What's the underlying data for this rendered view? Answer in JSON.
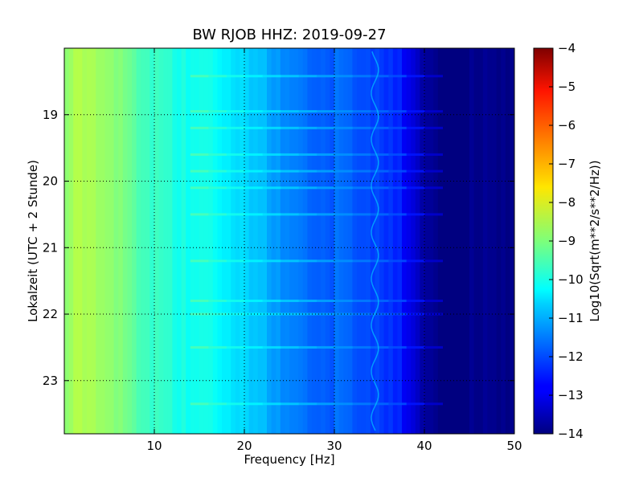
{
  "chart_data": {
    "type": "heatmap",
    "title": "BW RJOB HHZ: 2019-09-27",
    "xlabel": "Frequency [Hz]",
    "ylabel": "Lokalzeit (UTC + 2 Stunde)",
    "xlim": [
      0,
      50
    ],
    "x_ticks": [
      10,
      20,
      30,
      40,
      50
    ],
    "ylim_hours": [
      18.0,
      23.8
    ],
    "y_ticks": [
      19,
      20,
      21,
      22,
      23
    ],
    "y_axis_inverted": true,
    "grid": true,
    "colormap": "jet",
    "colorbar": {
      "label": "Log10(Sqrt(m**2/s**2/Hz))",
      "range": [
        -14,
        -4
      ],
      "ticks": [
        -4,
        -5,
        -6,
        -7,
        -8,
        -9,
        -10,
        -11,
        -12,
        -13,
        -14
      ]
    },
    "spectral_level_profile": {
      "frequency_hz": [
        0,
        2,
        5,
        10,
        15,
        20,
        25,
        30,
        35,
        38,
        40,
        42,
        50
      ],
      "log10_amplitude": [
        -8.9,
        -8.6,
        -8.9,
        -9.6,
        -10.1,
        -10.8,
        -11.3,
        -11.8,
        -12.3,
        -12.7,
        -13.6,
        -14.0,
        -14.0
      ]
    },
    "narrowband_line_hz": 34.5,
    "broadband_events_hour": [
      18.42,
      18.95,
      19.2,
      19.6,
      19.85,
      20.1,
      20.5,
      21.2,
      21.8,
      22.0,
      22.5,
      23.35
    ]
  }
}
